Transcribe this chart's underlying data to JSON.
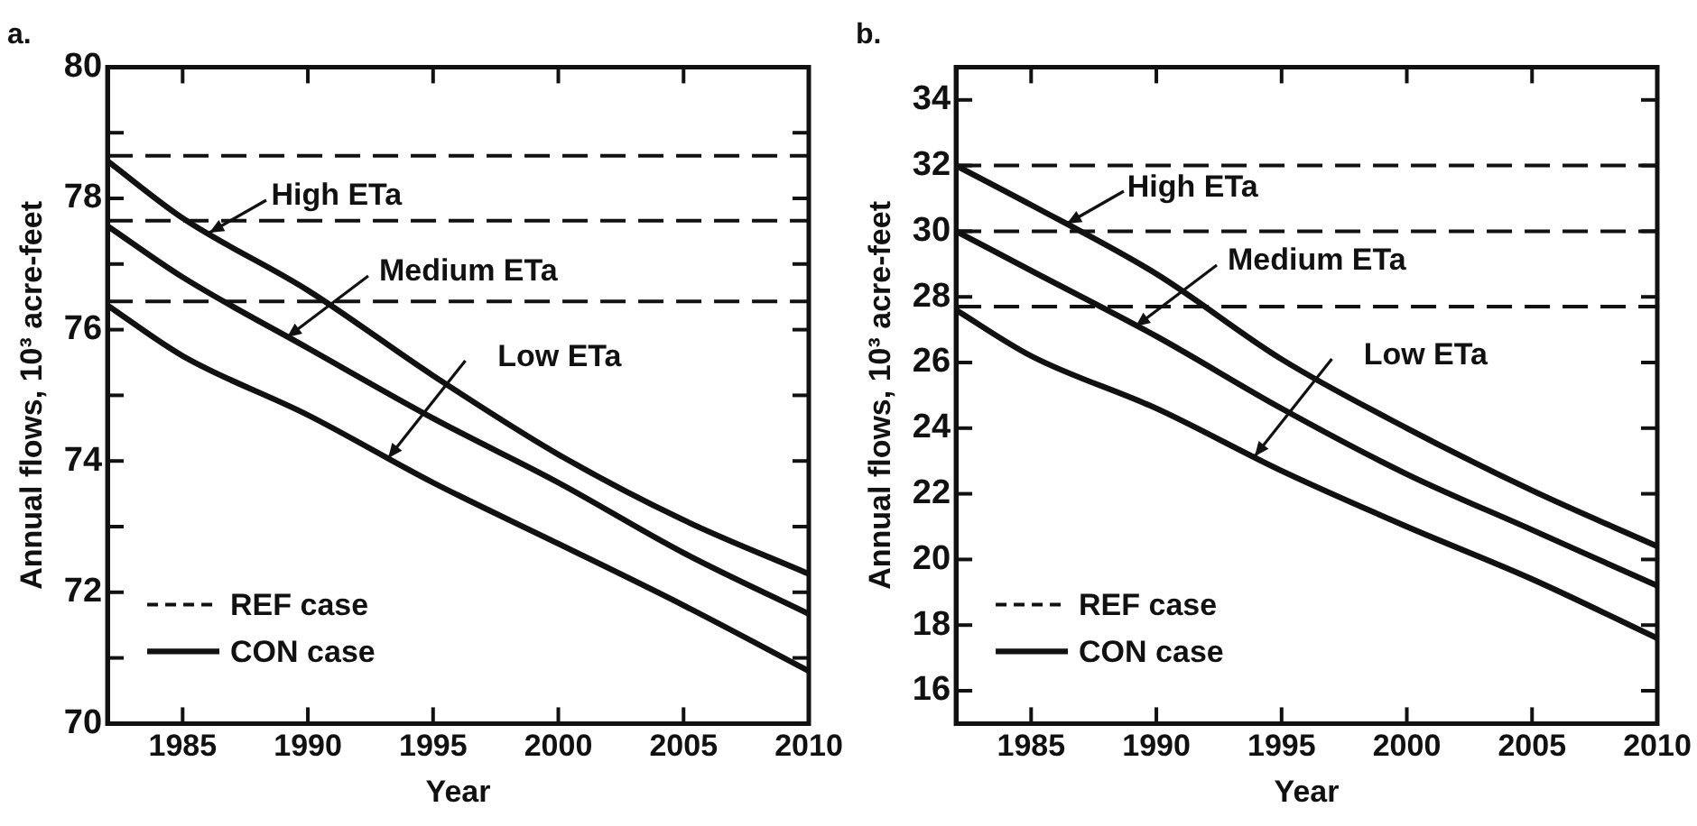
{
  "chart_data": [
    {
      "type": "line",
      "title": "a.",
      "xlabel": "Year",
      "ylabel": "Annual flows, 10³ acre-feet",
      "xlim": [
        1982,
        2010
      ],
      "xticks": [
        1985,
        1990,
        1995,
        2000,
        2005,
        2010
      ],
      "ylim": [
        70,
        80
      ],
      "yticks": [
        70,
        {
          "value": 71,
          "label": null
        },
        72,
        {
          "value": 73,
          "label": null
        },
        74,
        {
          "value": 75,
          "label": null
        },
        76,
        {
          "value": 77,
          "label": null
        },
        78,
        {
          "value": 79,
          "label": null
        },
        80
      ],
      "grid": false,
      "legend": "bottom left",
      "marker": "none",
      "series": [
        {
          "name": "REF case",
          "color": "#111111",
          "line_style": "dashed",
          "x": [
            1982,
            2010
          ],
          "values": [
            78.65,
            78.65
          ]
        },
        {
          "color": "#111111",
          "line_style": "dashed",
          "x": [
            1982,
            2010
          ],
          "values": [
            77.66,
            77.66
          ]
        },
        {
          "color": "#111111",
          "line_style": "dashed",
          "x": [
            1982,
            2010
          ],
          "values": [
            76.43,
            76.43
          ]
        },
        {
          "name": "CON case",
          "color": "#111111",
          "line_style": "solid",
          "x": [
            1982,
            1985,
            1990,
            1995,
            2000,
            2005,
            2010
          ],
          "values": [
            78.57,
            77.7,
            76.6,
            75.3,
            74.1,
            73.1,
            72.28
          ]
        },
        {
          "color": "#111111",
          "line_style": "solid",
          "x": [
            1982,
            1985,
            1990,
            1995,
            2000,
            2005,
            2010
          ],
          "values": [
            77.58,
            76.8,
            75.72,
            74.65,
            73.67,
            72.6,
            71.67
          ]
        },
        {
          "color": "#111111",
          "line_style": "solid",
          "x": [
            1982,
            1985,
            1990,
            1995,
            2000,
            2005,
            2010
          ],
          "values": [
            76.37,
            75.6,
            74.7,
            73.67,
            72.74,
            71.8,
            70.8
          ]
        }
      ],
      "annotations": [
        {
          "text": "High ETa",
          "x": 1986.1,
          "y": 77.48
        },
        {
          "text": "Medium ETa",
          "x": 1989.2,
          "y": 75.89
        },
        {
          "text": "Low ETa",
          "x": 1993.2,
          "y": 74.04
        }
      ]
    },
    {
      "type": "line",
      "title": "b.",
      "xlabel": "Year",
      "ylabel": "Annual flows, 10³ acre-feet",
      "xlim": [
        1982,
        2010
      ],
      "xticks": [
        1985,
        1990,
        1995,
        2000,
        2005,
        2010
      ],
      "ylim": [
        15,
        35
      ],
      "yticks": [
        16,
        18,
        20,
        22,
        24,
        26,
        28,
        30,
        32,
        34
      ],
      "grid": false,
      "legend": "bottom left",
      "marker": "none",
      "series": [
        {
          "name": "REF case",
          "color": "#111111",
          "line_style": "dashed",
          "x": [
            1982,
            2010
          ],
          "values": [
            32.0,
            32.0
          ]
        },
        {
          "color": "#111111",
          "line_style": "dashed",
          "x": [
            1982,
            2010
          ],
          "values": [
            30.0,
            30.0
          ]
        },
        {
          "color": "#111111",
          "line_style": "dashed",
          "x": [
            1982,
            2010
          ],
          "values": [
            27.7,
            27.7
          ]
        },
        {
          "name": "CON case",
          "color": "#111111",
          "line_style": "solid",
          "x": [
            1982,
            1985,
            1990,
            1995,
            2000,
            2005,
            2010
          ],
          "values": [
            32.0,
            30.8,
            28.7,
            26.1,
            24.0,
            22.1,
            20.4
          ]
        },
        {
          "color": "#111111",
          "line_style": "solid",
          "x": [
            1982,
            1985,
            1990,
            1995,
            2000,
            2005,
            2010
          ],
          "values": [
            30.0,
            28.8,
            26.8,
            24.6,
            22.6,
            20.9,
            19.2
          ]
        },
        {
          "color": "#111111",
          "line_style": "solid",
          "x": [
            1982,
            1985,
            1990,
            1995,
            2000,
            2005,
            2010
          ],
          "values": [
            27.6,
            26.2,
            24.6,
            22.7,
            21.0,
            19.4,
            17.6
          ]
        }
      ],
      "annotations": [
        {
          "text": "High ETa",
          "x": 1986.4,
          "y": 30.21
        },
        {
          "text": "Medium ETa",
          "x": 1989.2,
          "y": 27.12
        },
        {
          "text": "Low ETa",
          "x": 1993.9,
          "y": 23.12
        }
      ]
    }
  ]
}
